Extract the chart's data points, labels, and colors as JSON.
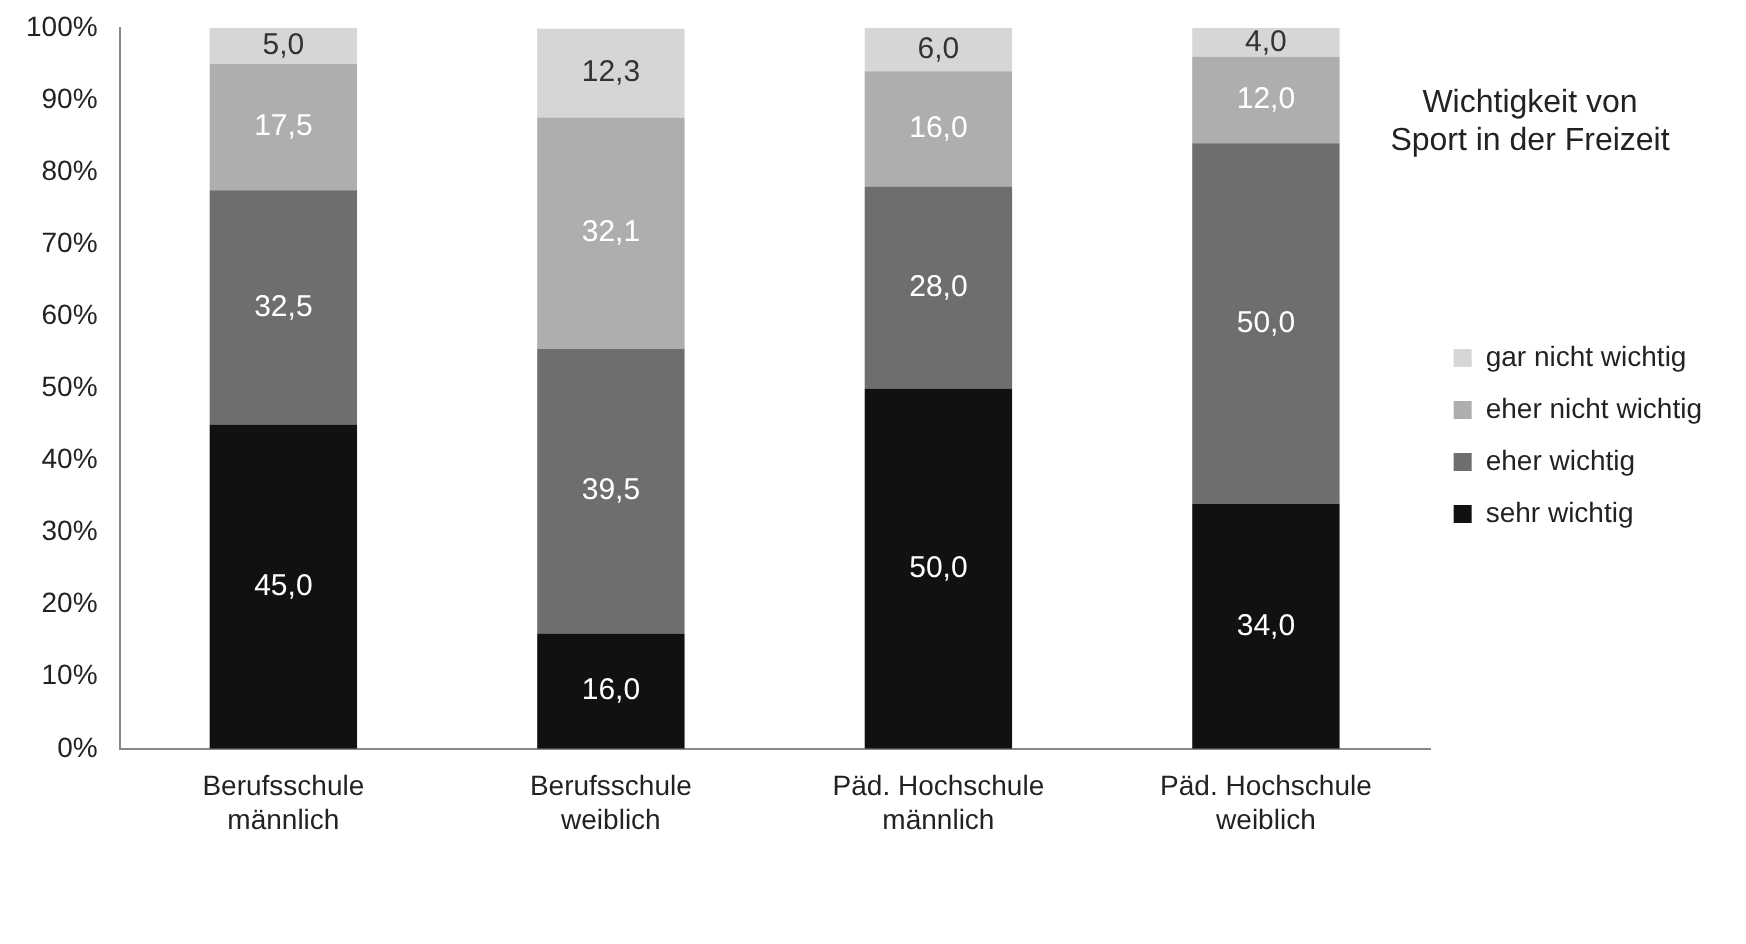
{
  "chart_data": {
    "type": "bar",
    "stacked": true,
    "title": "Wichtigkeit von Sport in der Freizeit",
    "categories": [
      "Berufsschule männlich",
      "Berufsschule weiblich",
      "Päd. Hochschule männlich",
      "Päd. Hochschule weiblich"
    ],
    "series": [
      {
        "name": "sehr wichtig",
        "color": "#111111",
        "values": [
          45.0,
          16.0,
          50.0,
          34.0
        ],
        "value_labels": [
          "45,0",
          "16,0",
          "50,0",
          "34,0"
        ]
      },
      {
        "name": "eher wichtig",
        "color": "#6e6e6e",
        "values": [
          32.5,
          39.5,
          28.0,
          50.0
        ],
        "value_labels": [
          "32,5",
          "39,5",
          "28,0",
          "50,0"
        ]
      },
      {
        "name": "eher nicht wichtig",
        "color": "#aeaeae",
        "values": [
          17.5,
          32.1,
          16.0,
          12.0
        ],
        "value_labels": [
          "17,5",
          "32,1",
          "16,0",
          "12,0"
        ]
      },
      {
        "name": "gar nicht wichtig",
        "color": "#d6d6d6",
        "values": [
          5.0,
          12.3,
          6.0,
          4.0
        ],
        "value_labels": [
          "5,0",
          "12,3",
          "6,0",
          "4,0"
        ]
      }
    ],
    "ylim": [
      0,
      100
    ],
    "yticks": [
      {
        "value": 0,
        "label": "0%"
      },
      {
        "value": 10,
        "label": "10%"
      },
      {
        "value": 20,
        "label": "20%"
      },
      {
        "value": 30,
        "label": "30%"
      },
      {
        "value": 40,
        "label": "40%"
      },
      {
        "value": 50,
        "label": "50%"
      },
      {
        "value": 60,
        "label": "60%"
      },
      {
        "value": 70,
        "label": "70%"
      },
      {
        "value": 80,
        "label": "80%"
      },
      {
        "value": 90,
        "label": "90%"
      },
      {
        "value": 100,
        "label": "100%"
      }
    ],
    "grid": false,
    "legend": "right"
  }
}
